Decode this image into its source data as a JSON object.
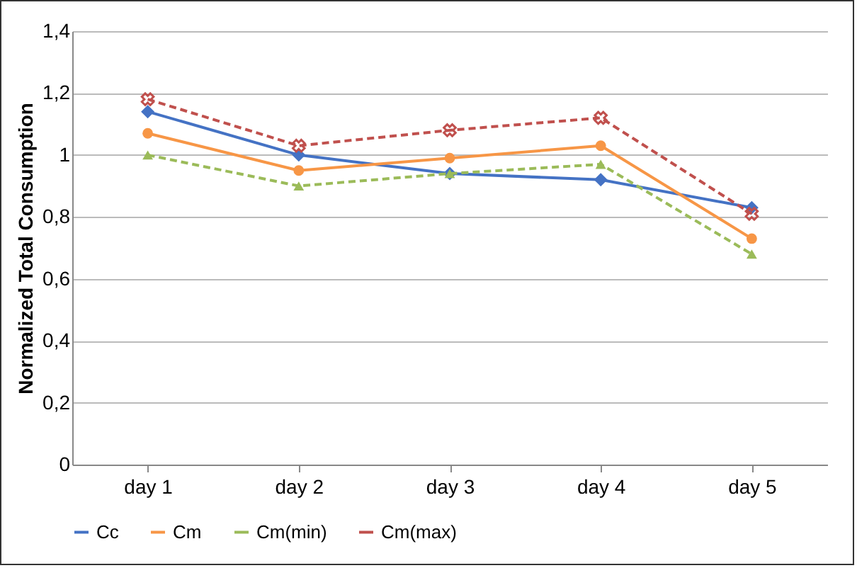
{
  "chart_data": {
    "type": "line",
    "ylabel": "Normalized Total Consumption",
    "categories": [
      "day 1",
      "day 2",
      "day 3",
      "day 4",
      "day 5"
    ],
    "series": [
      {
        "name": "Cc",
        "color": "#4472c4",
        "marker": "diamond",
        "line_style": "solid",
        "values": [
          1.14,
          1.0,
          0.94,
          0.92,
          0.83
        ]
      },
      {
        "name": "Cm",
        "color": "#f79646",
        "marker": "circle",
        "line_style": "solid",
        "values": [
          1.07,
          0.95,
          0.99,
          1.03,
          0.73
        ]
      },
      {
        "name": "Cm(min)",
        "color": "#9bbb59",
        "marker": "triangle",
        "line_style": "dashed",
        "values": [
          1.0,
          0.9,
          0.94,
          0.97,
          0.68
        ]
      },
      {
        "name": "Cm(max)",
        "color": "#c0504d",
        "marker": "cross",
        "line_style": "dashed",
        "values": [
          1.18,
          1.03,
          1.08,
          1.12,
          0.81
        ]
      }
    ],
    "ylim": [
      0,
      1.4
    ],
    "yticks": [
      {
        "value": 0,
        "label": "0"
      },
      {
        "value": 0.2,
        "label": "0,2"
      },
      {
        "value": 0.4,
        "label": "0,4"
      },
      {
        "value": 0.6,
        "label": "0,6"
      },
      {
        "value": 0.8,
        "label": "0,8"
      },
      {
        "value": 1,
        "label": "1"
      },
      {
        "value": 1.2,
        "label": "1,2"
      },
      {
        "value": 1.4,
        "label": "1,4"
      }
    ],
    "grid": "y",
    "legend": "bottom"
  }
}
